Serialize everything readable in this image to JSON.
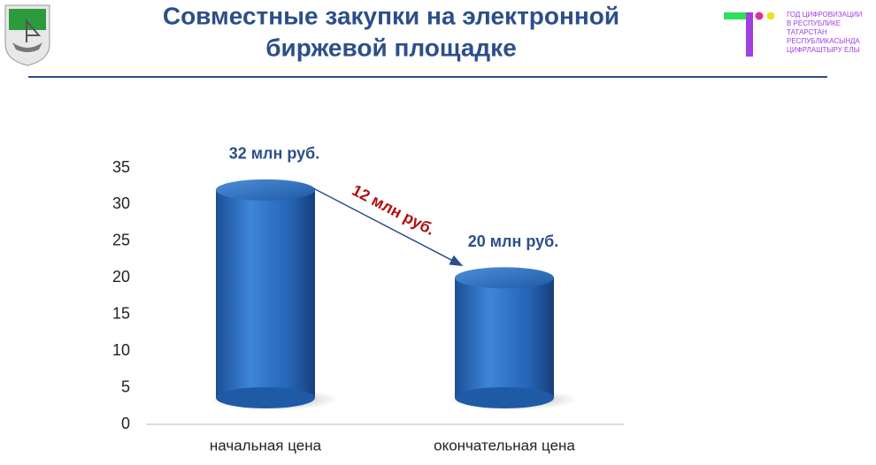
{
  "header": {
    "title_lines": [
      "Совместные закупки на электронной",
      "биржевой площадке"
    ],
    "logo_lines": [
      "ГОД ЦИФРОВИЗАЦИИ",
      "В РЕСПУБЛИКЕ",
      "ТАТАРСТАН",
      "РЕСПУБЛИКАСЫНДА",
      "ЦИФРЛАШТЫРУ ЕЛЫ"
    ]
  },
  "chart_data": {
    "type": "bar",
    "categories": [
      "начальная цена",
      "окончательная цена"
    ],
    "values": [
      32,
      20
    ],
    "value_labels": [
      "32 млн руб.",
      "20 млн руб."
    ],
    "annotation": "12 млн руб.",
    "color": "#2e6fbe",
    "ylim": [
      0,
      35
    ],
    "yticks": [
      0,
      5,
      10,
      15,
      20,
      25,
      30,
      35
    ]
  }
}
